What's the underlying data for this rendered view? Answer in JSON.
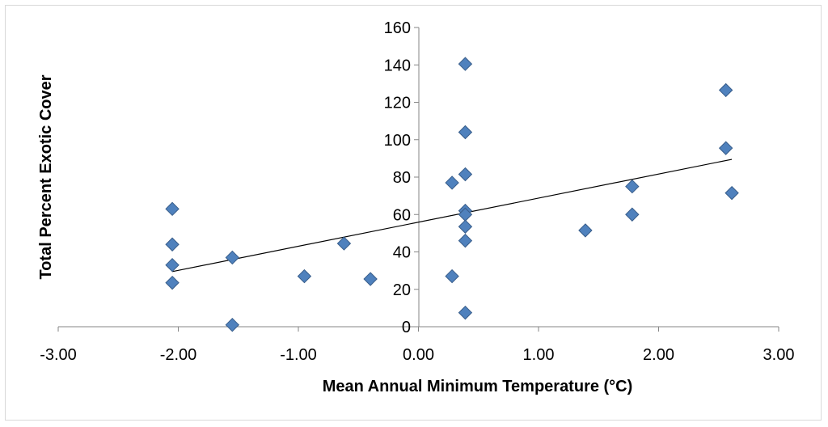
{
  "chart_data": {
    "type": "scatter",
    "title": "",
    "xlabel": "Mean Annual Minimum Temperature (°C)",
    "ylabel": "Total Percent Exotic Cover",
    "xlim": [
      -3,
      3
    ],
    "ylim": [
      0,
      160
    ],
    "x_ticks": [
      -3,
      -2,
      -1,
      0,
      1,
      2,
      3
    ],
    "x_tick_labels": [
      "-3.00",
      "-2.00",
      "-1.00",
      "0.00",
      "1.00",
      "2.00",
      "3.00"
    ],
    "y_ticks": [
      0,
      20,
      40,
      60,
      80,
      100,
      120,
      140,
      160
    ],
    "y_tick_labels": [
      "0",
      "20",
      "40",
      "60",
      "80",
      "100",
      "120",
      "140",
      "160"
    ],
    "grid": false,
    "legend": "none",
    "marker": "diamond",
    "marker_color": "#4f81bd",
    "marker_edge": "#385d8a",
    "series": [
      {
        "name": "Exotic Cover",
        "points": [
          {
            "x": -2.05,
            "y": 63
          },
          {
            "x": -2.05,
            "y": 44
          },
          {
            "x": -2.05,
            "y": 33
          },
          {
            "x": -2.05,
            "y": 23.5
          },
          {
            "x": -1.55,
            "y": 37
          },
          {
            "x": -1.55,
            "y": 1
          },
          {
            "x": -0.95,
            "y": 27
          },
          {
            "x": -0.62,
            "y": 44.5
          },
          {
            "x": -0.4,
            "y": 25.5
          },
          {
            "x": 0.28,
            "y": 77
          },
          {
            "x": 0.28,
            "y": 27
          },
          {
            "x": 0.39,
            "y": 140.5
          },
          {
            "x": 0.39,
            "y": 104
          },
          {
            "x": 0.39,
            "y": 81.5
          },
          {
            "x": 0.39,
            "y": 62
          },
          {
            "x": 0.39,
            "y": 60
          },
          {
            "x": 0.39,
            "y": 53.5
          },
          {
            "x": 0.39,
            "y": 46
          },
          {
            "x": 0.39,
            "y": 7.5
          },
          {
            "x": 1.39,
            "y": 51.5
          },
          {
            "x": 1.78,
            "y": 75
          },
          {
            "x": 1.78,
            "y": 60
          },
          {
            "x": 2.56,
            "y": 126.5
          },
          {
            "x": 2.56,
            "y": 95.5
          },
          {
            "x": 2.61,
            "y": 71.5
          }
        ]
      }
    ],
    "trendline": {
      "type": "linear",
      "color": "#000000",
      "x_start": -2.05,
      "y_start": 29.5,
      "x_end": 2.61,
      "y_end": 89.5
    }
  }
}
